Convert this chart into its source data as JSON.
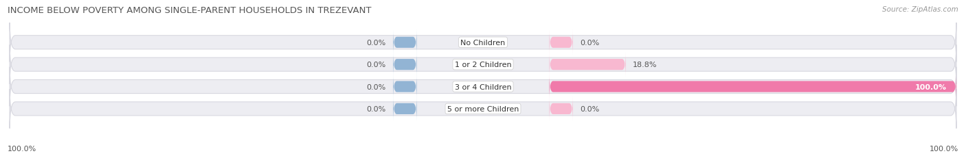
{
  "title": "INCOME BELOW POVERTY AMONG SINGLE-PARENT HOUSEHOLDS IN TREZEVANT",
  "source": "Source: ZipAtlas.com",
  "categories": [
    "No Children",
    "1 or 2 Children",
    "3 or 4 Children",
    "5 or more Children"
  ],
  "single_father": [
    0.0,
    0.0,
    0.0,
    0.0
  ],
  "single_mother": [
    0.0,
    18.8,
    100.0,
    0.0
  ],
  "father_color": "#92b4d4",
  "mother_color": "#f07aaa",
  "mother_color_light": "#f8b8d0",
  "bar_bg_color": "#ededf2",
  "bar_border_color": "#d8d8e0",
  "title_fontsize": 9.5,
  "label_fontsize": 8,
  "tick_fontsize": 8,
  "source_fontsize": 7.5,
  "figsize": [
    14.06,
    2.32
  ],
  "dpi": 100,
  "bottom_left_label": "100.0%",
  "bottom_right_label": "100.0%"
}
